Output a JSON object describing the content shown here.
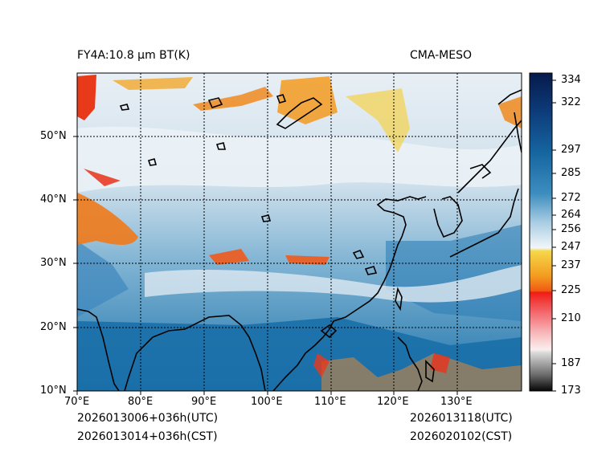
{
  "header": {
    "title_left": "FY4A:10.8 µm BT(K)",
    "title_right": "CMA-MESO"
  },
  "footer": {
    "init_utc": "2026013006+036h(UTC)",
    "init_cst": "2026013014+036h(CST)",
    "valid_utc": "2026013118(UTC)",
    "valid_cst": "2026020102(CST)"
  },
  "map": {
    "lon_labels": [
      "70°E",
      "80°E",
      "90°E",
      "100°E",
      "110°E",
      "120°E",
      "130°E"
    ],
    "lat_labels": [
      "10°N",
      "20°N",
      "30°N",
      "40°N",
      "50°N"
    ],
    "lon_range": [
      70,
      140
    ],
    "lat_range": [
      10,
      60
    ],
    "lon_ticks": [
      70,
      80,
      90,
      100,
      110,
      120,
      130
    ],
    "lat_ticks": [
      10,
      20,
      30,
      40,
      50
    ]
  },
  "colorbar": {
    "tick_labels": [
      "334",
      "322",
      "297",
      "285",
      "272",
      "264",
      "256",
      "247",
      "237",
      "225",
      "210",
      "187",
      "173"
    ],
    "tick_values": [
      334,
      322,
      297,
      285,
      272,
      264,
      256,
      247,
      237,
      225,
      210,
      187,
      173
    ],
    "range": [
      173,
      340
    ]
  },
  "colors": {
    "ocean": "#1a6fa8",
    "cloud": "#e6eef5",
    "cold_cloud": "#f07a1a",
    "very_cold": "#e52a1a"
  }
}
